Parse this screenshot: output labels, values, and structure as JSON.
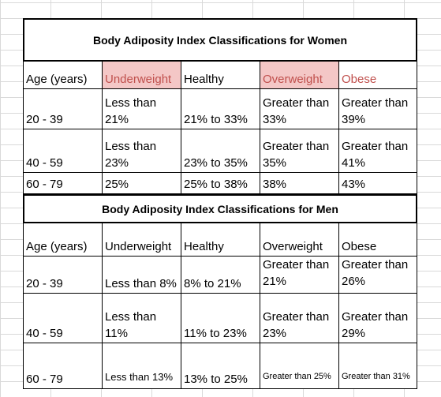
{
  "women": {
    "title": "Body Adiposity Index Classifications for Women",
    "header": [
      "Age (years)",
      "Underweight",
      "Healthy",
      "Overweight",
      "Obese"
    ],
    "rows": [
      [
        "20 - 39",
        "Less than\n21%",
        "21% to 33%",
        "Greater than\n33%",
        "Greater than\n39%"
      ],
      [
        "40 - 59",
        "Less than\n23%",
        "23% to 35%",
        "Greater than\n35%",
        "Greater than\n41%"
      ],
      [
        "60 - 79",
        "25%",
        "25% to 38%",
        "38%",
        "43%"
      ]
    ],
    "highlight_color": "#f4c7c6",
    "obese_text_color": "#c0504d"
  },
  "men": {
    "title": "Body Adiposity Index Classifications for Men",
    "header": [
      "Age (years)",
      "Underweight",
      "Healthy",
      "Overweight",
      "Obese"
    ],
    "rows": [
      [
        "20 - 39",
        "Less than 8%",
        "8% to 21%",
        "Greater than\n21%",
        "Greater than\n26%"
      ],
      [
        "40 - 59",
        "Less than\n11%",
        "11% to 23%",
        "Greater than\n23%",
        "Greater than\n29%"
      ],
      [
        "60 - 79",
        "Less than 13%",
        "13% to 25%",
        "Greater than 25%",
        "Greater than 31%"
      ]
    ]
  }
}
